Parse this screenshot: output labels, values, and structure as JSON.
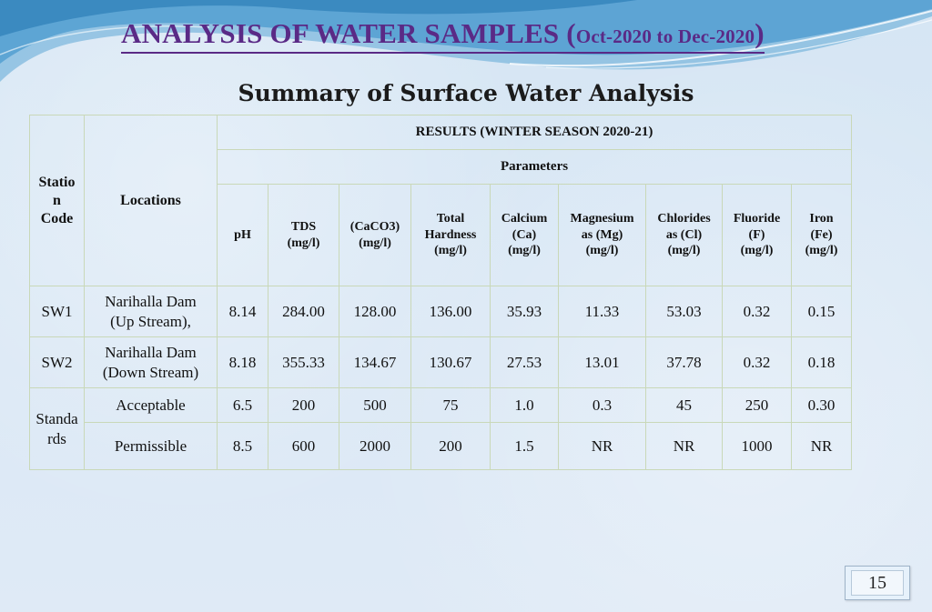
{
  "slide": {
    "title_main": "ANALYSIS OF WATER SAMPLES",
    "title_paren_open": "(",
    "title_range": "Oct-2020 to Dec-2020",
    "title_paren_close": ")",
    "subtitle": "Summary of Surface Water Analysis",
    "page_number": "15"
  },
  "table": {
    "station_code_header": [
      "Statio",
      "n",
      "Code"
    ],
    "locations_header": "Locations",
    "results_header": "RESULTS (WINTER SEASON 2020-21)",
    "parameters_header": "Parameters",
    "parameters": [
      [
        "pH"
      ],
      [
        "TDS",
        "(mg/l)"
      ],
      [
        "(CaCO3)",
        "(mg/l)"
      ],
      [
        "Total",
        "Hardness",
        "(mg/l)"
      ],
      [
        "Calcium",
        "(Ca)",
        "(mg/l)"
      ],
      [
        "Magnesium",
        "as  (Mg)",
        "(mg/l)"
      ],
      [
        "Chlorides",
        "as (Cl)",
        "(mg/l)"
      ],
      [
        "Fluoride",
        "(F)",
        "(mg/l)"
      ],
      [
        "Iron",
        "(Fe)",
        "(mg/l)"
      ]
    ],
    "rows": [
      {
        "code": "SW1",
        "location": [
          "Narihalla Dam",
          "(Up Stream),"
        ],
        "values": [
          "8.14",
          "284.00",
          "128.00",
          "136.00",
          "35.93",
          "11.33",
          "53.03",
          "0.32",
          "0.15"
        ]
      },
      {
        "code": "SW2",
        "location": [
          "Narihalla Dam",
          "(Down Stream)"
        ],
        "values": [
          "8.18",
          "355.33",
          "134.67",
          "130.67",
          "27.53",
          "13.01",
          "37.78",
          "0.32",
          "0.18"
        ]
      }
    ],
    "standards_label": [
      "Standa",
      "rds"
    ],
    "standards": [
      {
        "location": "Acceptable",
        "values": [
          "6.5",
          "200",
          "500",
          "75",
          "1.0",
          "0.3",
          "45",
          "250",
          "0.30"
        ]
      },
      {
        "location": "Permissible",
        "values": [
          "8.5",
          "600",
          "2000",
          "200",
          "1.5",
          "NR",
          "NR",
          "1000",
          "NR"
        ]
      }
    ]
  },
  "colors": {
    "title": "#5a2a86",
    "grid": "#c9d8b8",
    "background": "#dce9f5"
  }
}
